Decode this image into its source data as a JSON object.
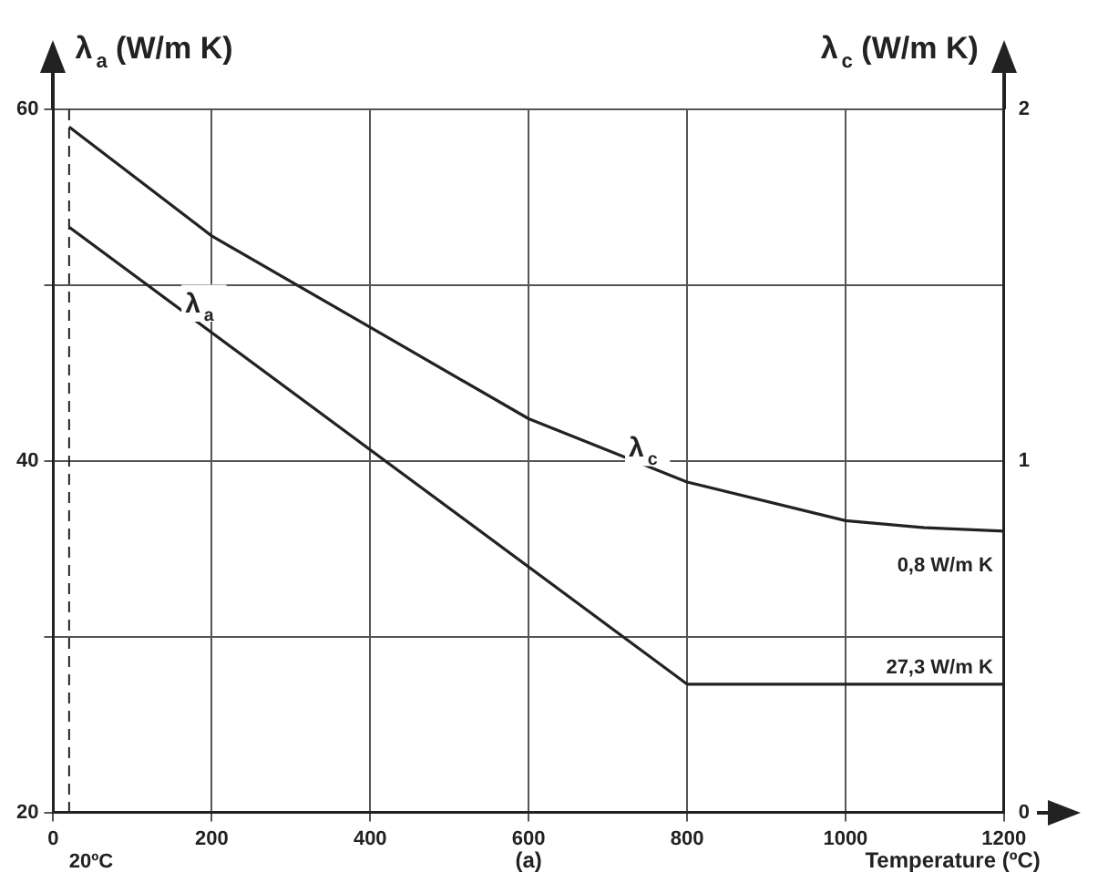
{
  "chart_data": {
    "type": "line",
    "ylabel": "λ$_{a}$ (W/m K)",
    "y2label": "λ$_{c}$ (W/m K)",
    "xlabel": "Temperature (ºC)",
    "x": [
      20,
      800,
      1200
    ],
    "series": [
      {
        "name": "λ$_{a}$",
        "color": "#222222",
        "values": [
          53.3,
          27.3,
          27.3
        ],
        "value_labels": [
          null,
          null,
          "27,3 W/m K"
        ]
      },
      {
        "name": "λ$_{c}$",
        "color": "#222222",
        "axis": "y2",
        "x": [
          20,
          200,
          400,
          600,
          800,
          1000,
          1100,
          1200
        ],
        "values": [
          1.95,
          1.64,
          1.38,
          1.12,
          0.94,
          0.83,
          0.81,
          0.8
        ],
        "value_labels": [
          null,
          null,
          null,
          null,
          null,
          null,
          null,
          "0,8 W/m K"
        ]
      }
    ],
    "xlim": [
      0,
      1200
    ],
    "xticks": [
      0,
      200,
      400,
      600,
      800,
      1000,
      1200
    ],
    "ylim": [
      20,
      60
    ],
    "yticks": [
      20,
      {
        "value": 30,
        "label": null
      },
      40,
      {
        "value": 50,
        "label": null
      },
      60
    ],
    "y2lim": [
      0,
      2
    ],
    "y2ticks": [
      0,
      1,
      2
    ],
    "grid": true,
    "marker": "none",
    "line_style": "solid",
    "ref_lines": [
      {
        "axis": "x",
        "value": 20,
        "label": "20ºC",
        "line_style": "dashed"
      }
    ],
    "annotations": [
      "(a)"
    ]
  }
}
